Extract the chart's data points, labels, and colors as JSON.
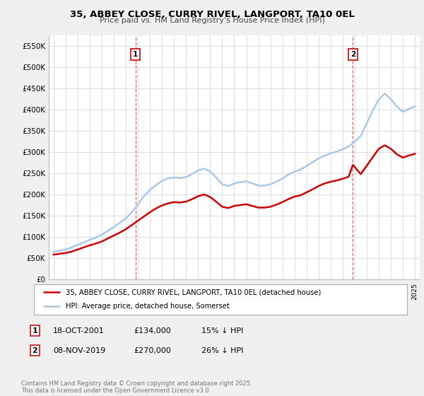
{
  "title": "35, ABBEY CLOSE, CURRY RIVEL, LANGPORT, TA10 0EL",
  "subtitle": "Price paid vs. HM Land Registry's House Price Index (HPI)",
  "ylim": [
    0,
    575000
  ],
  "yticks": [
    0,
    50000,
    100000,
    150000,
    200000,
    250000,
    300000,
    350000,
    400000,
    450000,
    500000,
    550000
  ],
  "ytick_labels": [
    "£0",
    "£50K",
    "£100K",
    "£150K",
    "£200K",
    "£250K",
    "£300K",
    "£350K",
    "£400K",
    "£450K",
    "£500K",
    "£550K"
  ],
  "background_color": "#f0f0f0",
  "plot_bg_color": "#ffffff",
  "grid_color": "#d8d8d8",
  "hpi_color": "#aac8e8",
  "price_color": "#cc0000",
  "vline_color": "#cc0000",
  "marker1_x": 2001.8,
  "marker2_x": 2019.85,
  "legend_line1": "35, ABBEY CLOSE, CURRY RIVEL, LANGPORT, TA10 0EL (detached house)",
  "legend_line2": "HPI: Average price, detached house, Somerset",
  "footer": "Contains HM Land Registry data © Crown copyright and database right 2025.\nThis data is licensed under the Open Government Licence v3.0.",
  "hpi_data_x": [
    1995.0,
    1995.5,
    1996.0,
    1996.5,
    1997.0,
    1997.5,
    1998.0,
    1998.5,
    1999.0,
    1999.5,
    2000.0,
    2000.5,
    2001.0,
    2001.5,
    2002.0,
    2002.5,
    2003.0,
    2003.5,
    2004.0,
    2004.5,
    2005.0,
    2005.5,
    2006.0,
    2006.5,
    2007.0,
    2007.5,
    2008.0,
    2008.5,
    2009.0,
    2009.5,
    2010.0,
    2010.5,
    2011.0,
    2011.5,
    2012.0,
    2012.5,
    2013.0,
    2013.5,
    2014.0,
    2014.5,
    2015.0,
    2015.5,
    2016.0,
    2016.5,
    2017.0,
    2017.5,
    2018.0,
    2018.5,
    2019.0,
    2019.5,
    2020.0,
    2020.5,
    2021.0,
    2021.5,
    2022.0,
    2022.5,
    2023.0,
    2023.5,
    2024.0,
    2024.5,
    2025.0
  ],
  "hpi_data_y": [
    65000,
    67000,
    70000,
    75000,
    81000,
    87000,
    93000,
    98000,
    105000,
    114000,
    123000,
    133000,
    144000,
    158000,
    176000,
    196000,
    211000,
    222000,
    232000,
    238000,
    240000,
    239000,
    241000,
    248000,
    257000,
    261000,
    254000,
    240000,
    224000,
    220000,
    226000,
    229000,
    231000,
    226000,
    221000,
    221000,
    224000,
    230000,
    238000,
    247000,
    254000,
    259000,
    267000,
    276000,
    285000,
    292000,
    297000,
    301000,
    307000,
    313000,
    325000,
    338000,
    368000,
    398000,
    425000,
    438000,
    425000,
    408000,
    395000,
    402000,
    408000
  ],
  "price_data_x": [
    1995.0,
    1995.5,
    1996.0,
    1996.5,
    1997.0,
    1997.5,
    1998.0,
    1998.5,
    1999.0,
    1999.5,
    2000.0,
    2000.5,
    2001.0,
    2001.5,
    2001.8,
    2002.5,
    2003.0,
    2003.5,
    2004.0,
    2004.5,
    2005.0,
    2005.5,
    2006.0,
    2006.5,
    2007.0,
    2007.5,
    2008.0,
    2008.5,
    2009.0,
    2009.5,
    2010.0,
    2010.5,
    2011.0,
    2011.5,
    2012.0,
    2012.5,
    2013.0,
    2013.5,
    2014.0,
    2014.5,
    2015.0,
    2015.5,
    2016.0,
    2016.5,
    2017.0,
    2017.5,
    2018.0,
    2018.5,
    2019.0,
    2019.5,
    2019.85,
    2020.5,
    2021.0,
    2021.5,
    2022.0,
    2022.5,
    2023.0,
    2023.5,
    2024.0,
    2024.5,
    2025.0
  ],
  "price_data_y": [
    58000,
    60000,
    62000,
    65000,
    70000,
    75000,
    80000,
    84000,
    89000,
    96000,
    103000,
    110000,
    118000,
    128000,
    134000,
    148000,
    158000,
    167000,
    174000,
    179000,
    182000,
    181000,
    183000,
    189000,
    196000,
    200000,
    194000,
    183000,
    171000,
    168000,
    173000,
    175000,
    177000,
    173000,
    169000,
    169000,
    171000,
    176000,
    182000,
    189000,
    195000,
    198000,
    205000,
    212000,
    220000,
    226000,
    230000,
    233000,
    237000,
    242000,
    270000,
    248000,
    268000,
    288000,
    308000,
    316000,
    308000,
    295000,
    287000,
    292000,
    296000
  ]
}
